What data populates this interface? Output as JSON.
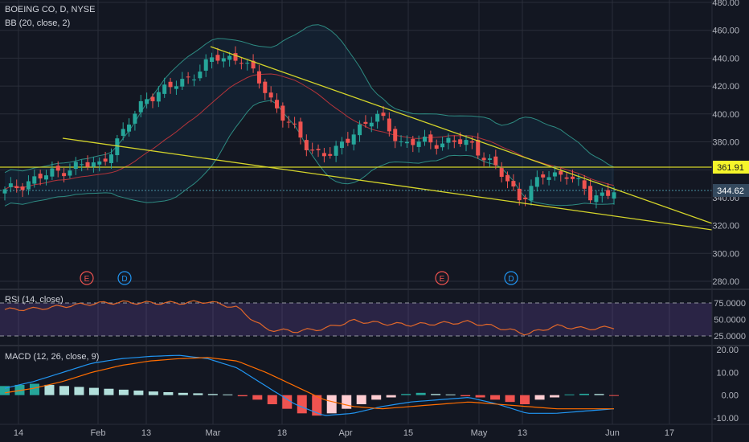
{
  "header": {
    "symbol_line": "BOEING CO, D, NYSE",
    "indicator_bb": "BB (20, close, 2)",
    "indicator_rsi": "RSI (14, close)",
    "indicator_macd": "MACD (12, 26, close, 9)"
  },
  "price_axis": {
    "ticks": [
      "480.00",
      "460.00",
      "440.00",
      "420.00",
      "400.00",
      "380.00",
      "360.00",
      "340.00",
      "320.00",
      "300.00",
      "280.00"
    ],
    "labels": {
      "level": "361.91",
      "last": "344.62"
    }
  },
  "rsi_axis": {
    "ticks": [
      "75.0000",
      "50.0000",
      "25.0000"
    ]
  },
  "macd_axis": {
    "ticks": [
      "20.00",
      "10.00",
      "0.00",
      "-10.00"
    ]
  },
  "time_axis": {
    "ticks": [
      "14",
      "Feb",
      "13",
      "Mar",
      "18",
      "Apr",
      "15",
      "May",
      "13",
      "Jun",
      "17"
    ]
  },
  "events": [
    {
      "letter": "E",
      "kind": "earnings"
    },
    {
      "letter": "D",
      "kind": "dividend"
    },
    {
      "letter": "E",
      "kind": "earnings"
    },
    {
      "letter": "D",
      "kind": "dividend"
    }
  ],
  "colors": {
    "bg": "#131722",
    "grid": "#2a2e39",
    "up": "#26a69a",
    "down": "#ef5350",
    "bb_fill": "rgba(33,150,243,0.07)",
    "bb_band": "#2e8b82",
    "bb_basis": "#b5343a",
    "trend": "#d4d42a",
    "rsi_line": "#e0672a",
    "rsi_fill": "rgba(126,87,194,0.22)",
    "macd_line": "#2196f3",
    "signal_line": "#ff6d00",
    "hist_up_strong": "#26a69a",
    "hist_up_weak": "#b2dfdb",
    "hist_down_strong": "#ef5350",
    "hist_down_weak": "#ffcdd2",
    "level_label_bg": "#f5f52a",
    "last_label_bg": "#34495e"
  },
  "chart_data": [
    {
      "type": "candlestick",
      "title": "BOEING CO, D, NYSE",
      "ylim": [
        280,
        480
      ],
      "overlays": [
        "BB (20, close, 2)"
      ],
      "horizontal_level": 361.91,
      "last_price": 344.62,
      "series": [
        {
          "name": "close",
          "x": [
            "Jan 10",
            "Jan 14",
            "Jan 17",
            "Jan 23",
            "Jan 28",
            "Feb 1",
            "Feb 6",
            "Feb 13",
            "Feb 20",
            "Feb 26",
            "Mar 1",
            "Mar 6",
            "Mar 11",
            "Mar 18",
            "Mar 25",
            "Apr 1",
            "Apr 5",
            "Apr 12",
            "Apr 18",
            "Apr 26",
            "May 1",
            "May 7",
            "May 13",
            "May 20",
            "May 24",
            "May 31",
            "Jun 3"
          ],
          "values": [
            344,
            352,
            357,
            363,
            363,
            385,
            412,
            418,
            428,
            440,
            441,
            420,
            395,
            375,
            370,
            390,
            398,
            378,
            380,
            380,
            378,
            360,
            340,
            355,
            358,
            340,
            346
          ]
        }
      ]
    },
    {
      "type": "line",
      "title": "RSI (14, close)",
      "ylim": [
        20,
        80
      ],
      "bands": [
        30,
        70
      ],
      "series": [
        {
          "name": "RSI",
          "x": [
            "Jan 10",
            "Jan 17",
            "Jan 24",
            "Feb 1",
            "Feb 8",
            "Feb 15",
            "Feb 22",
            "Mar 1",
            "Mar 6",
            "Mar 11",
            "Mar 18",
            "Mar 25",
            "Apr 1",
            "Apr 8",
            "Apr 15",
            "Apr 22",
            "Apr 29",
            "May 6",
            "May 13",
            "May 20",
            "May 27",
            "Jun 3"
          ],
          "values": [
            65,
            66,
            70,
            74,
            76,
            75,
            75,
            77,
            68,
            35,
            32,
            36,
            48,
            44,
            42,
            44,
            46,
            38,
            28,
            40,
            36,
            38
          ]
        }
      ]
    },
    {
      "type": "bar+line",
      "title": "MACD (12, 26, close, 9)",
      "ylim": [
        -12,
        21
      ],
      "series": [
        {
          "name": "histogram",
          "values": [
            4,
            4.5,
            5,
            4.5,
            4,
            3.6,
            3.2,
            2.8,
            2.4,
            2,
            1.6,
            1.3,
            1,
            0.8,
            0.5,
            0.3,
            -0.5,
            -2,
            -4,
            -6,
            -8,
            -9,
            -8,
            -6,
            -4,
            -2,
            -1,
            0.5,
            1,
            0.5,
            0.3,
            -0.5,
            -1,
            -2,
            -3,
            -4,
            -2,
            -1,
            0.3,
            0.6,
            0.5,
            -0.3
          ]
        },
        {
          "name": "MACD",
          "values": [
            3,
            6,
            10,
            14,
            16,
            17,
            17.5,
            16,
            12,
            4,
            -4,
            -9,
            -8,
            -5,
            -3,
            -2,
            -1,
            -4,
            -8,
            -8,
            -7,
            -6
          ]
        },
        {
          "name": "signal",
          "values": [
            1,
            3,
            6,
            10,
            13,
            15,
            16,
            16.5,
            15,
            10,
            4,
            -2,
            -5,
            -6,
            -5,
            -4,
            -3,
            -4,
            -5,
            -6,
            -6,
            -6
          ]
        }
      ]
    }
  ]
}
